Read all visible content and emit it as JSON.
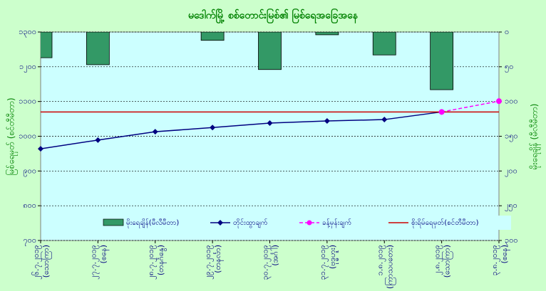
{
  "chart_data": {
    "type": "bar-line",
    "title": "မဒေါက်မြို့ စစ်တောင်းမြစ်၏ မြစ်ရေအခြေအနေ",
    "y_label": "မြစ်ရေမှတ် (စင်တီမီတာ)",
    "y2_label": "မိုးရေချိန် (မီလီမီတာ)",
    "categories": [
      "၂၆.၇.၂၀၁၉",
      "၂၇.၇.၂၀၁၉",
      "၂၈.၇.၂၀၁၉",
      "၂၉.၇.၂၀၁၉",
      "၃၀.၇.၂၀၁၉",
      "၃၁.၇.၂၀၁၉",
      "၁.၈.၂၀၁၉",
      "၂.၈.၂၀၁၉",
      "၃.၈.၂၀၁၉"
    ],
    "category_days": [
      "(သောကြာ)",
      "(စနေ)",
      "(တနင်္ဂနွေ)",
      "(တနင်္လာ)",
      "(အင်္ဂါ)",
      "(ဗုဒ္ဓဟူး)",
      "(ကြာသပတေး)",
      "(သောကြာ)",
      "(စနေ)"
    ],
    "series": [
      {
        "name": "မိုးရေချိန်(မီလီမီတာ)",
        "kind": "bar",
        "axis": "y2",
        "color": "#339966",
        "values": [
          37,
          47,
          0,
          12,
          54,
          4,
          33,
          83,
          0
        ]
      },
      {
        "name": "တိုင်းထွာချက်",
        "kind": "line",
        "color": "#000080",
        "values": [
          964,
          989,
          1013,
          1025,
          1038,
          1044,
          1048,
          1070,
          null
        ]
      },
      {
        "name": "ခန့်မှန်းချက်",
        "kind": "dashed-line",
        "color": "#ff00ff",
        "values": [
          null,
          null,
          null,
          null,
          null,
          null,
          null,
          1070,
          1101
        ]
      },
      {
        "name": "စိုးရိမ်ရေမှတ်(စင်တီမီတာ)",
        "kind": "reference",
        "color": "#cc0000",
        "values": [
          1070,
          1070,
          1070,
          1070,
          1070,
          1070,
          1070,
          1070,
          1070
        ]
      }
    ],
    "ylim": [
      700,
      1300
    ],
    "yticks": [
      {
        "value": 700,
        "label": "၇၀၀"
      },
      {
        "value": 800,
        "label": "၈၀၀"
      },
      {
        "value": 900,
        "label": "၉၀၀"
      },
      {
        "value": 1000,
        "label": "၁၀၀၀"
      },
      {
        "value": 1100,
        "label": "၁၁၀၀"
      },
      {
        "value": 1200,
        "label": "၁၂၀၀"
      },
      {
        "value": 1300,
        "label": "၁၃၀၀"
      }
    ],
    "y2lim": [
      0,
      300
    ],
    "y2_inverted": true,
    "y2ticks": [
      {
        "value": 0,
        "label": "၀"
      },
      {
        "value": 50,
        "label": "၅၀"
      },
      {
        "value": 100,
        "label": "၁၀၀"
      },
      {
        "value": 150,
        "label": "၁၅၀"
      },
      {
        "value": 200,
        "label": "၂၀၀"
      },
      {
        "value": 250,
        "label": "၂၅၀"
      },
      {
        "value": 300,
        "label": "၃၀၀"
      }
    ],
    "grid": true,
    "legend": "bottom"
  }
}
